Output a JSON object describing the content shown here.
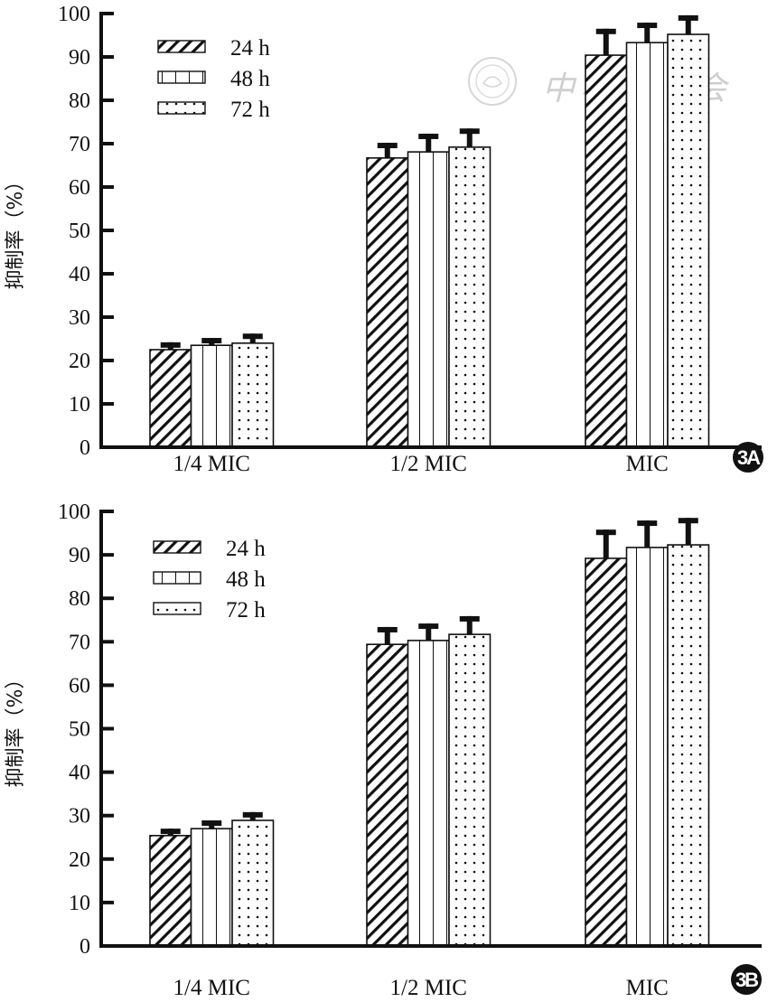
{
  "watermark": {
    "text": "中华医学会",
    "emblem": "chinese-medical-association-emblem"
  },
  "colors": {
    "axis": "#111111",
    "bar_fill": "#ffffff",
    "bar_stroke": "#111111",
    "pattern_ink": "#111111",
    "badge_bg": "#111111",
    "badge_text": "#ffffff",
    "watermark": "#cfcfcf"
  },
  "chart_data": [
    {
      "type": "bar",
      "panel": "3A",
      "title": "",
      "xlabel": "",
      "ylabel": "抑制率（%）",
      "ylim": [
        0,
        100
      ],
      "yticks": [
        0,
        10,
        20,
        30,
        40,
        50,
        60,
        70,
        80,
        90,
        100
      ],
      "grid": false,
      "legend_position": "top-left",
      "categories": [
        "1/4 MIC",
        "1/2 MIC",
        "MIC"
      ],
      "series": [
        {
          "name": "24 h",
          "pattern": "diagonal-hatch",
          "values": [
            22.5,
            66.7,
            90.4
          ],
          "error": [
            1.7,
            3.5,
            6.1
          ]
        },
        {
          "name": "48 h",
          "pattern": "vertical-lines",
          "values": [
            23.5,
            68.1,
            93.3
          ],
          "error": [
            1.7,
            4.2,
            4.6
          ]
        },
        {
          "name": "72 h",
          "pattern": "dots",
          "values": [
            24.0,
            69.2,
            95.2
          ],
          "error": [
            2.2,
            4.3,
            4.4
          ]
        }
      ]
    },
    {
      "type": "bar",
      "panel": "3B",
      "title": "",
      "xlabel": "",
      "ylabel": "抑制率（%）",
      "ylim": [
        0,
        100
      ],
      "yticks": [
        0,
        10,
        20,
        30,
        40,
        50,
        60,
        70,
        80,
        90,
        100
      ],
      "grid": false,
      "legend_position": "top-left",
      "categories": [
        "1/4 MIC",
        "1/2 MIC",
        "MIC"
      ],
      "series": [
        {
          "name": "24 h",
          "pattern": "diagonal-hatch",
          "values": [
            25.4,
            69.4,
            89.2
          ],
          "error": [
            1.6,
            4.0,
            6.6
          ]
        },
        {
          "name": "48 h",
          "pattern": "vertical-lines",
          "values": [
            27.0,
            70.3,
            91.7
          ],
          "error": [
            1.9,
            3.9,
            6.2
          ]
        },
        {
          "name": "72 h",
          "pattern": "dots",
          "values": [
            28.9,
            71.7,
            92.3
          ],
          "error": [
            1.9,
            4.2,
            6.2
          ]
        }
      ]
    }
  ]
}
